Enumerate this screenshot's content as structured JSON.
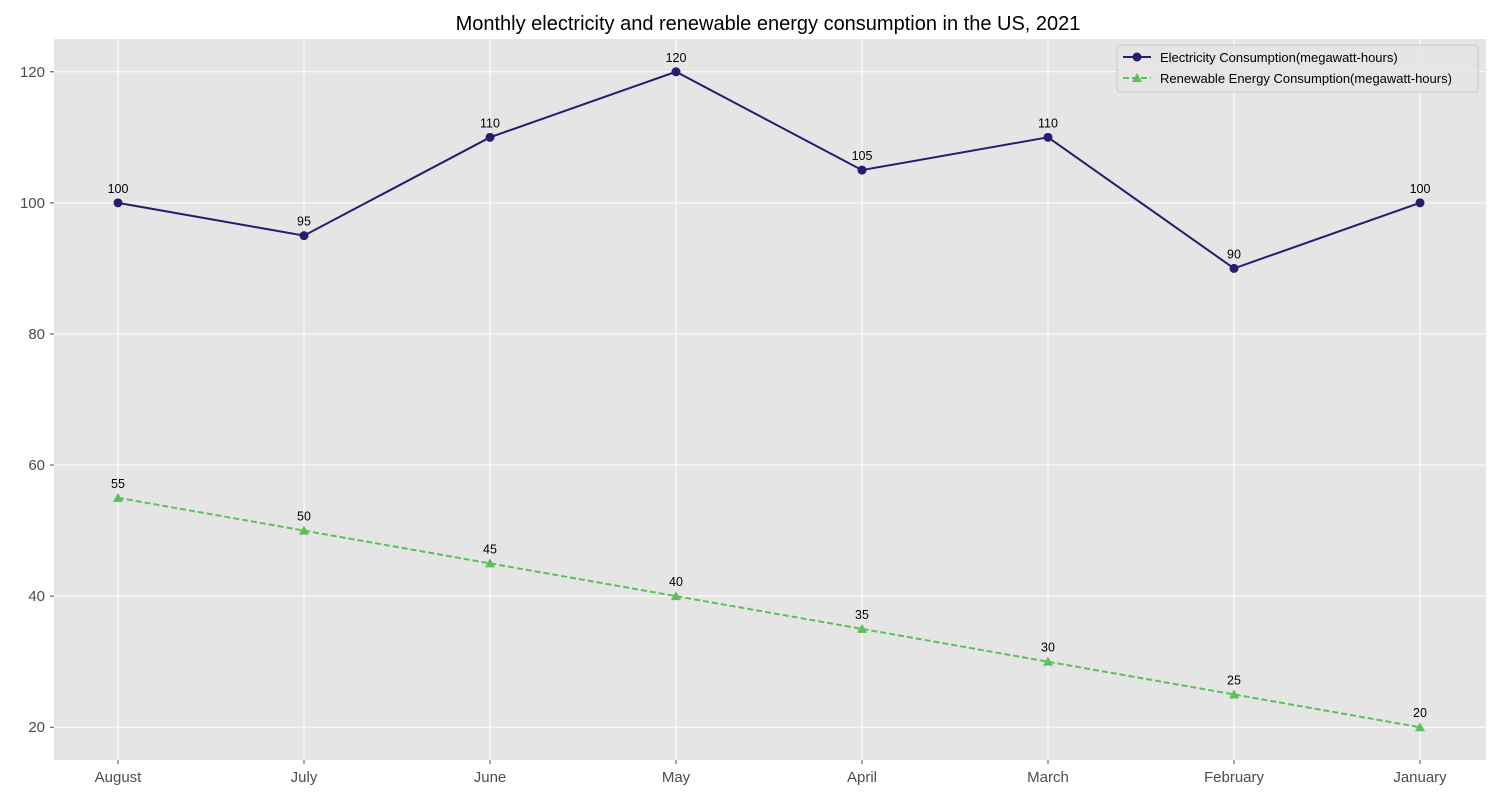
{
  "chart_data": {
    "type": "line",
    "title": "Monthly electricity and renewable energy consumption in the US, 2021",
    "xlabel": "",
    "ylabel": "",
    "categories": [
      "August",
      "July",
      "June",
      "May",
      "April",
      "March",
      "February",
      "January"
    ],
    "ylim": [
      15,
      125
    ],
    "yticks": [
      20,
      40,
      60,
      80,
      100,
      120
    ],
    "grid": true,
    "legend_position": "top-right",
    "series": [
      {
        "name": "Electricity Consumption(megawatt-hours)",
        "values": [
          100,
          95,
          110,
          120,
          105,
          110,
          90,
          100
        ],
        "color": "#2d1a6e",
        "marker": "circle",
        "line_style": "solid"
      },
      {
        "name": "Renewable Energy Consumption(megawatt-hours)",
        "values": [
          55,
          50,
          45,
          40,
          35,
          30,
          25,
          20
        ],
        "color": "#5cc05c",
        "marker": "triangle",
        "line_style": "dashed"
      }
    ],
    "colors": {
      "plot_background": "#e5e5e5",
      "grid": "#ffffff",
      "tick_label": "#4d4d4d"
    }
  }
}
